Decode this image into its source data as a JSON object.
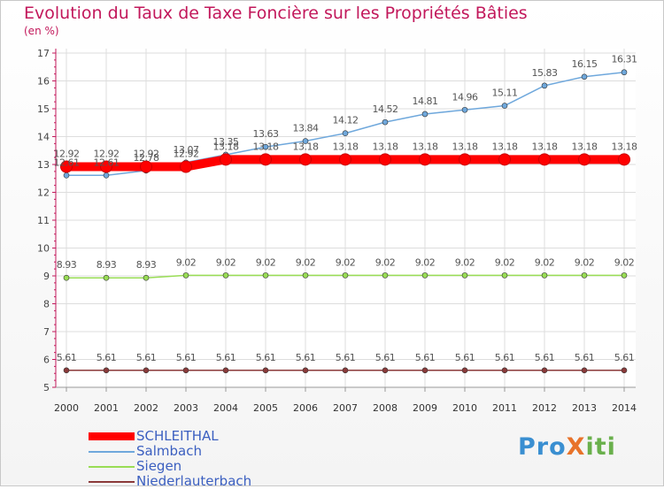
{
  "title": "Evolution du Taux de Taxe Foncière sur les Propriétés Bâties",
  "subtitle": "(en %)",
  "logo": {
    "parts": [
      "Pro",
      "X",
      "iti"
    ],
    "colors": [
      "#3a8fd1",
      "#e8732a",
      "#6ab04c"
    ]
  },
  "chart_data": {
    "type": "line",
    "categories": [
      "2000",
      "2001",
      "2002",
      "2003",
      "2004",
      "2005",
      "2006",
      "2007",
      "2008",
      "2009",
      "2010",
      "2011",
      "2012",
      "2013",
      "2014"
    ],
    "ylim": [
      5,
      17
    ],
    "yticks": [
      "5",
      "6",
      "7",
      "8",
      "9",
      "10",
      "11",
      "12",
      "13",
      "14",
      "15",
      "16",
      "17"
    ],
    "grid": true,
    "legend_position": "bottom-left",
    "series": [
      {
        "name": "SCHLEITHAL",
        "color": "#ff0000",
        "values": [
          12.92,
          12.92,
          12.92,
          12.92,
          13.18,
          13.18,
          13.18,
          13.18,
          13.18,
          13.18,
          13.18,
          13.18,
          13.18,
          13.18,
          13.18
        ],
        "labels": [
          "12.92",
          "12.92",
          "12.92",
          "12.92",
          "13.18",
          "13.18",
          "13.18",
          "13.18",
          "13.18",
          "13.18",
          "13.18",
          "13.18",
          "13.18",
          "13.18",
          "13.18"
        ]
      },
      {
        "name": "Salmbach",
        "color": "#6fa8dc",
        "values": [
          12.61,
          12.61,
          12.78,
          13.07,
          13.35,
          13.63,
          13.84,
          14.12,
          14.52,
          14.81,
          14.96,
          15.11,
          15.83,
          16.15,
          16.31
        ],
        "labels": [
          "12.61",
          "12.61",
          "12.78",
          "13.07",
          "13.35",
          "13.63",
          "13.84",
          "14.12",
          "14.52",
          "14.81",
          "14.96",
          "15.11",
          "15.83",
          "16.15",
          "16.31"
        ]
      },
      {
        "name": "Siegen",
        "color": "#99dd55",
        "values": [
          8.93,
          8.93,
          8.93,
          9.02,
          9.02,
          9.02,
          9.02,
          9.02,
          9.02,
          9.02,
          9.02,
          9.02,
          9.02,
          9.02,
          9.02
        ],
        "labels": [
          "8.93",
          "8.93",
          "8.93",
          "9.02",
          "9.02",
          "9.02",
          "9.02",
          "9.02",
          "9.02",
          "9.02",
          "9.02",
          "9.02",
          "9.02",
          "9.02",
          "9.02"
        ]
      },
      {
        "name": "Niederlauterbach",
        "color": "#8b3a3a",
        "values": [
          5.61,
          5.61,
          5.61,
          5.61,
          5.61,
          5.61,
          5.61,
          5.61,
          5.61,
          5.61,
          5.61,
          5.61,
          5.61,
          5.61,
          5.61
        ],
        "labels": [
          "5.61",
          "5.61",
          "5.61",
          "5.61",
          "5.61",
          "5.61",
          "5.61",
          "5.61",
          "5.61",
          "5.61",
          "5.61",
          "5.61",
          "5.61",
          "5.61",
          "5.61"
        ]
      }
    ]
  }
}
